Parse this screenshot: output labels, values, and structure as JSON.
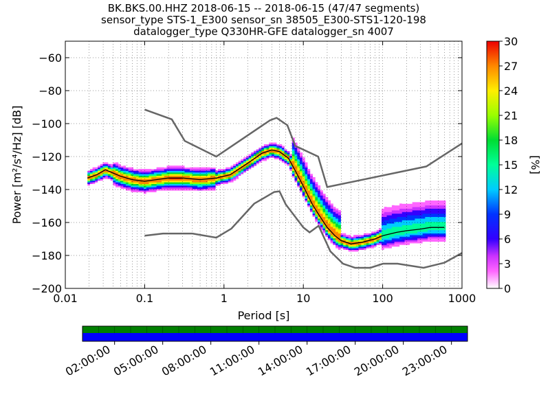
{
  "titles": [
    "BK.BKS.00.HHZ   2018-06-15 -- 2018-06-15  (47/47 segments)",
    "sensor_type STS-1_E300 sensor_sn 38505_E300-STS1-120-198",
    "datalogger_type Q330HR-GFE datalogger_sn 4007"
  ],
  "chart_data": {
    "type": "heatmap",
    "xlabel": "Period [s]",
    "ylabel": "Power [m²/s⁴/Hz] [dB]",
    "xscale": "log",
    "xlim": [
      0.01,
      1000
    ],
    "ylim": [
      -200,
      -50
    ],
    "x_ticks": [
      0.01,
      0.1,
      1,
      10,
      100,
      1000
    ],
    "x_tick_labels": [
      "0.01",
      "0.1",
      "1",
      "10",
      "100",
      "1000"
    ],
    "y_ticks": [
      -200,
      -180,
      -160,
      -140,
      -120,
      -100,
      -80,
      -60
    ],
    "y_tick_labels": [
      "−200",
      "−180",
      "−160",
      "−140",
      "−120",
      "−100",
      "−80",
      "−60"
    ],
    "grid": true,
    "colorbar": {
      "label": "[%]",
      "range": [
        0,
        30
      ],
      "ticks": [
        0,
        3,
        6,
        9,
        12,
        15,
        18,
        21,
        24,
        27,
        30
      ]
    },
    "model_curves": [
      {
        "periods": [
          0.1,
          0.22,
          0.32,
          0.8,
          3.8,
          4.6,
          6.3,
          7.9,
          15.4,
          20,
          354.8,
          1000
        ],
        "values": [
          -91.5,
          -97.4,
          -110.5,
          -120,
          -98,
          -96.5,
          -101,
          -113.5,
          -120,
          -138.5,
          -126,
          -112
        ]
      },
      {
        "periods": [
          0.1,
          0.17,
          0.4,
          0.8,
          1.24,
          2.4,
          4.3,
          5,
          6,
          10,
          12,
          15.6,
          21.9,
          31.6,
          45,
          70,
          101,
          154,
          328,
          600,
          1000
        ],
        "values": [
          -168,
          -166.7,
          -166.7,
          -169.2,
          -163.7,
          -148.6,
          -141.5,
          -141.1,
          -149,
          -163,
          -166,
          -162,
          -177.5,
          -185,
          -187.5,
          -187.5,
          -185,
          -185,
          -187.5,
          -184.4,
          -178.5
        ]
      }
    ],
    "mode_curve": {
      "periods": [
        0.019,
        0.025,
        0.032,
        0.04,
        0.05,
        0.07,
        0.1,
        0.14,
        0.2,
        0.3,
        0.5,
        0.8,
        1.2,
        2,
        3,
        4,
        5,
        6.5,
        8,
        10,
        13,
        16,
        20,
        25,
        30,
        40,
        55,
        80,
        100,
        150,
        200,
        300,
        400,
        600
      ],
      "values": [
        -133,
        -131,
        -128,
        -130,
        -132,
        -134,
        -135,
        -134,
        -133,
        -133,
        -134,
        -133,
        -131,
        -124,
        -118,
        -116,
        -117,
        -121,
        -129,
        -138,
        -149,
        -156,
        -163,
        -168,
        -171,
        -173,
        -172,
        -170,
        -168,
        -166,
        -165,
        -164,
        -163,
        -163
      ]
    },
    "time_axis": {
      "tick_labels": [
        "02:00:00",
        "05:00:00",
        "08:00:00",
        "11:00:00",
        "14:00:00",
        "17:00:00",
        "20:00:00",
        "23:00:00"
      ],
      "hours": [
        2,
        5,
        8,
        11,
        14,
        17,
        20,
        23
      ],
      "range_hours": [
        0,
        24
      ],
      "segment_hours": [
        0,
        1,
        2,
        3,
        4,
        5,
        6,
        7,
        8,
        9,
        10,
        11,
        12,
        13,
        14,
        15,
        16,
        17,
        18,
        19,
        20,
        21,
        22,
        23,
        24
      ],
      "data_color": "#008000",
      "gap_color": "#0000ff"
    }
  }
}
